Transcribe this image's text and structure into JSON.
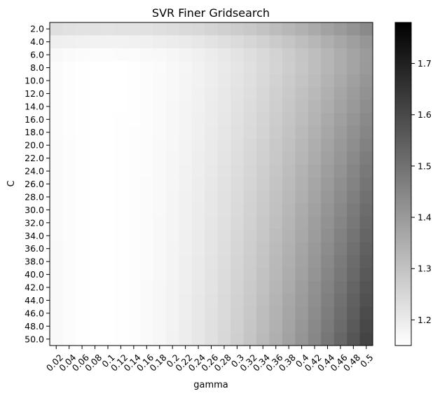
{
  "chart_data": {
    "type": "heatmap",
    "title": "SVR Finer Gridsearch",
    "xlabel": "gamma",
    "ylabel": "C",
    "x_tick_labels": [
      "0.02",
      "0.04",
      "0.06",
      "0.08",
      "0.1",
      "0.12",
      "0.14",
      "0.16",
      "0.18",
      "0.2",
      "0.22",
      "0.24",
      "0.26",
      "0.28",
      "0.3",
      "0.32",
      "0.34",
      "0.36",
      "0.38",
      "0.4",
      "0.42",
      "0.44",
      "0.46",
      "0.48",
      "0.5"
    ],
    "y_tick_labels": [
      "2.0",
      "4.0",
      "6.0",
      "8.0",
      "10.0",
      "12.0",
      "14.0",
      "16.0",
      "18.0",
      "20.0",
      "22.0",
      "24.0",
      "26.0",
      "28.0",
      "30.0",
      "32.0",
      "34.0",
      "36.0",
      "38.0",
      "40.0",
      "42.0",
      "44.0",
      "46.0",
      "48.0",
      "50.0"
    ],
    "gamma": [
      0.02,
      0.04,
      0.06,
      0.08,
      0.1,
      0.12,
      0.14,
      0.16,
      0.18,
      0.2,
      0.22,
      0.24,
      0.26,
      0.28,
      0.3,
      0.32,
      0.34,
      0.36,
      0.38,
      0.4,
      0.42,
      0.44,
      0.46,
      0.48,
      0.5
    ],
    "C": [
      2,
      4,
      6,
      8,
      10,
      12,
      14,
      16,
      18,
      20,
      22,
      24,
      26,
      28,
      30,
      32,
      34,
      36,
      38,
      40,
      42,
      44,
      46,
      48,
      50
    ],
    "value_model": "approx: 1.15 + (gamma-0.09)^2 * (0.9 + 0.03*C) + 0.4*(gamma-0.12)^2 + 0.07*max(0,(8-C)/6)^2",
    "colormap": "gray_r",
    "colorbar": {
      "min": 1.15,
      "max": 1.78,
      "tick_values": [
        1.2,
        1.3,
        1.4,
        1.5,
        1.6,
        1.7
      ],
      "tick_labels": [
        "1.2",
        "1.3",
        "1.4",
        "1.5",
        "1.6",
        "1.7"
      ]
    },
    "grid": false,
    "legend": "colorbar-right"
  }
}
